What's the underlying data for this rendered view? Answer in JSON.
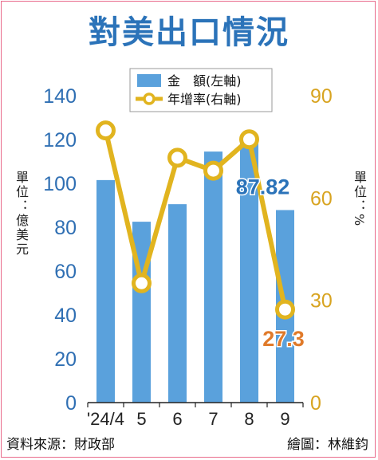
{
  "title": "對美出口情況",
  "footer": {
    "source": "資料來源：財政部",
    "author": "繪圖：林維鈞"
  },
  "units": {
    "left": "單位：億美元",
    "right": "單位：%"
  },
  "colors": {
    "bar": "#5aa1dc",
    "line": "#e1b41f",
    "title": "#2b73b9",
    "left_ticks": "#2f6fb3",
    "right_ticks": "#d8a421"
  },
  "chart_data": {
    "type": "bar",
    "categories": [
      "'24/4",
      "5",
      "6",
      "7",
      "8",
      "9"
    ],
    "series": [
      {
        "name": "金　額(左軸)",
        "type": "bar",
        "axis": "left",
        "values": [
          101.5,
          82.5,
          90.5,
          114.5,
          119.5,
          87.82
        ]
      },
      {
        "name": "年增率(右軸)",
        "type": "line",
        "axis": "right",
        "values": [
          79.8,
          35.0,
          71.8,
          68.0,
          77.2,
          27.3
        ]
      }
    ],
    "ylim_left": [
      0,
      140
    ],
    "ylim_right": [
      0,
      90
    ],
    "yticks_left": [
      "0",
      "20",
      "40",
      "60",
      "80",
      "100",
      "120",
      "140"
    ],
    "yticks_right": [
      "0",
      "30",
      "60",
      "90"
    ],
    "annotations": {
      "bar_last": "87.82",
      "line_last": "27.3"
    },
    "legend": "top-right",
    "grid": false
  }
}
